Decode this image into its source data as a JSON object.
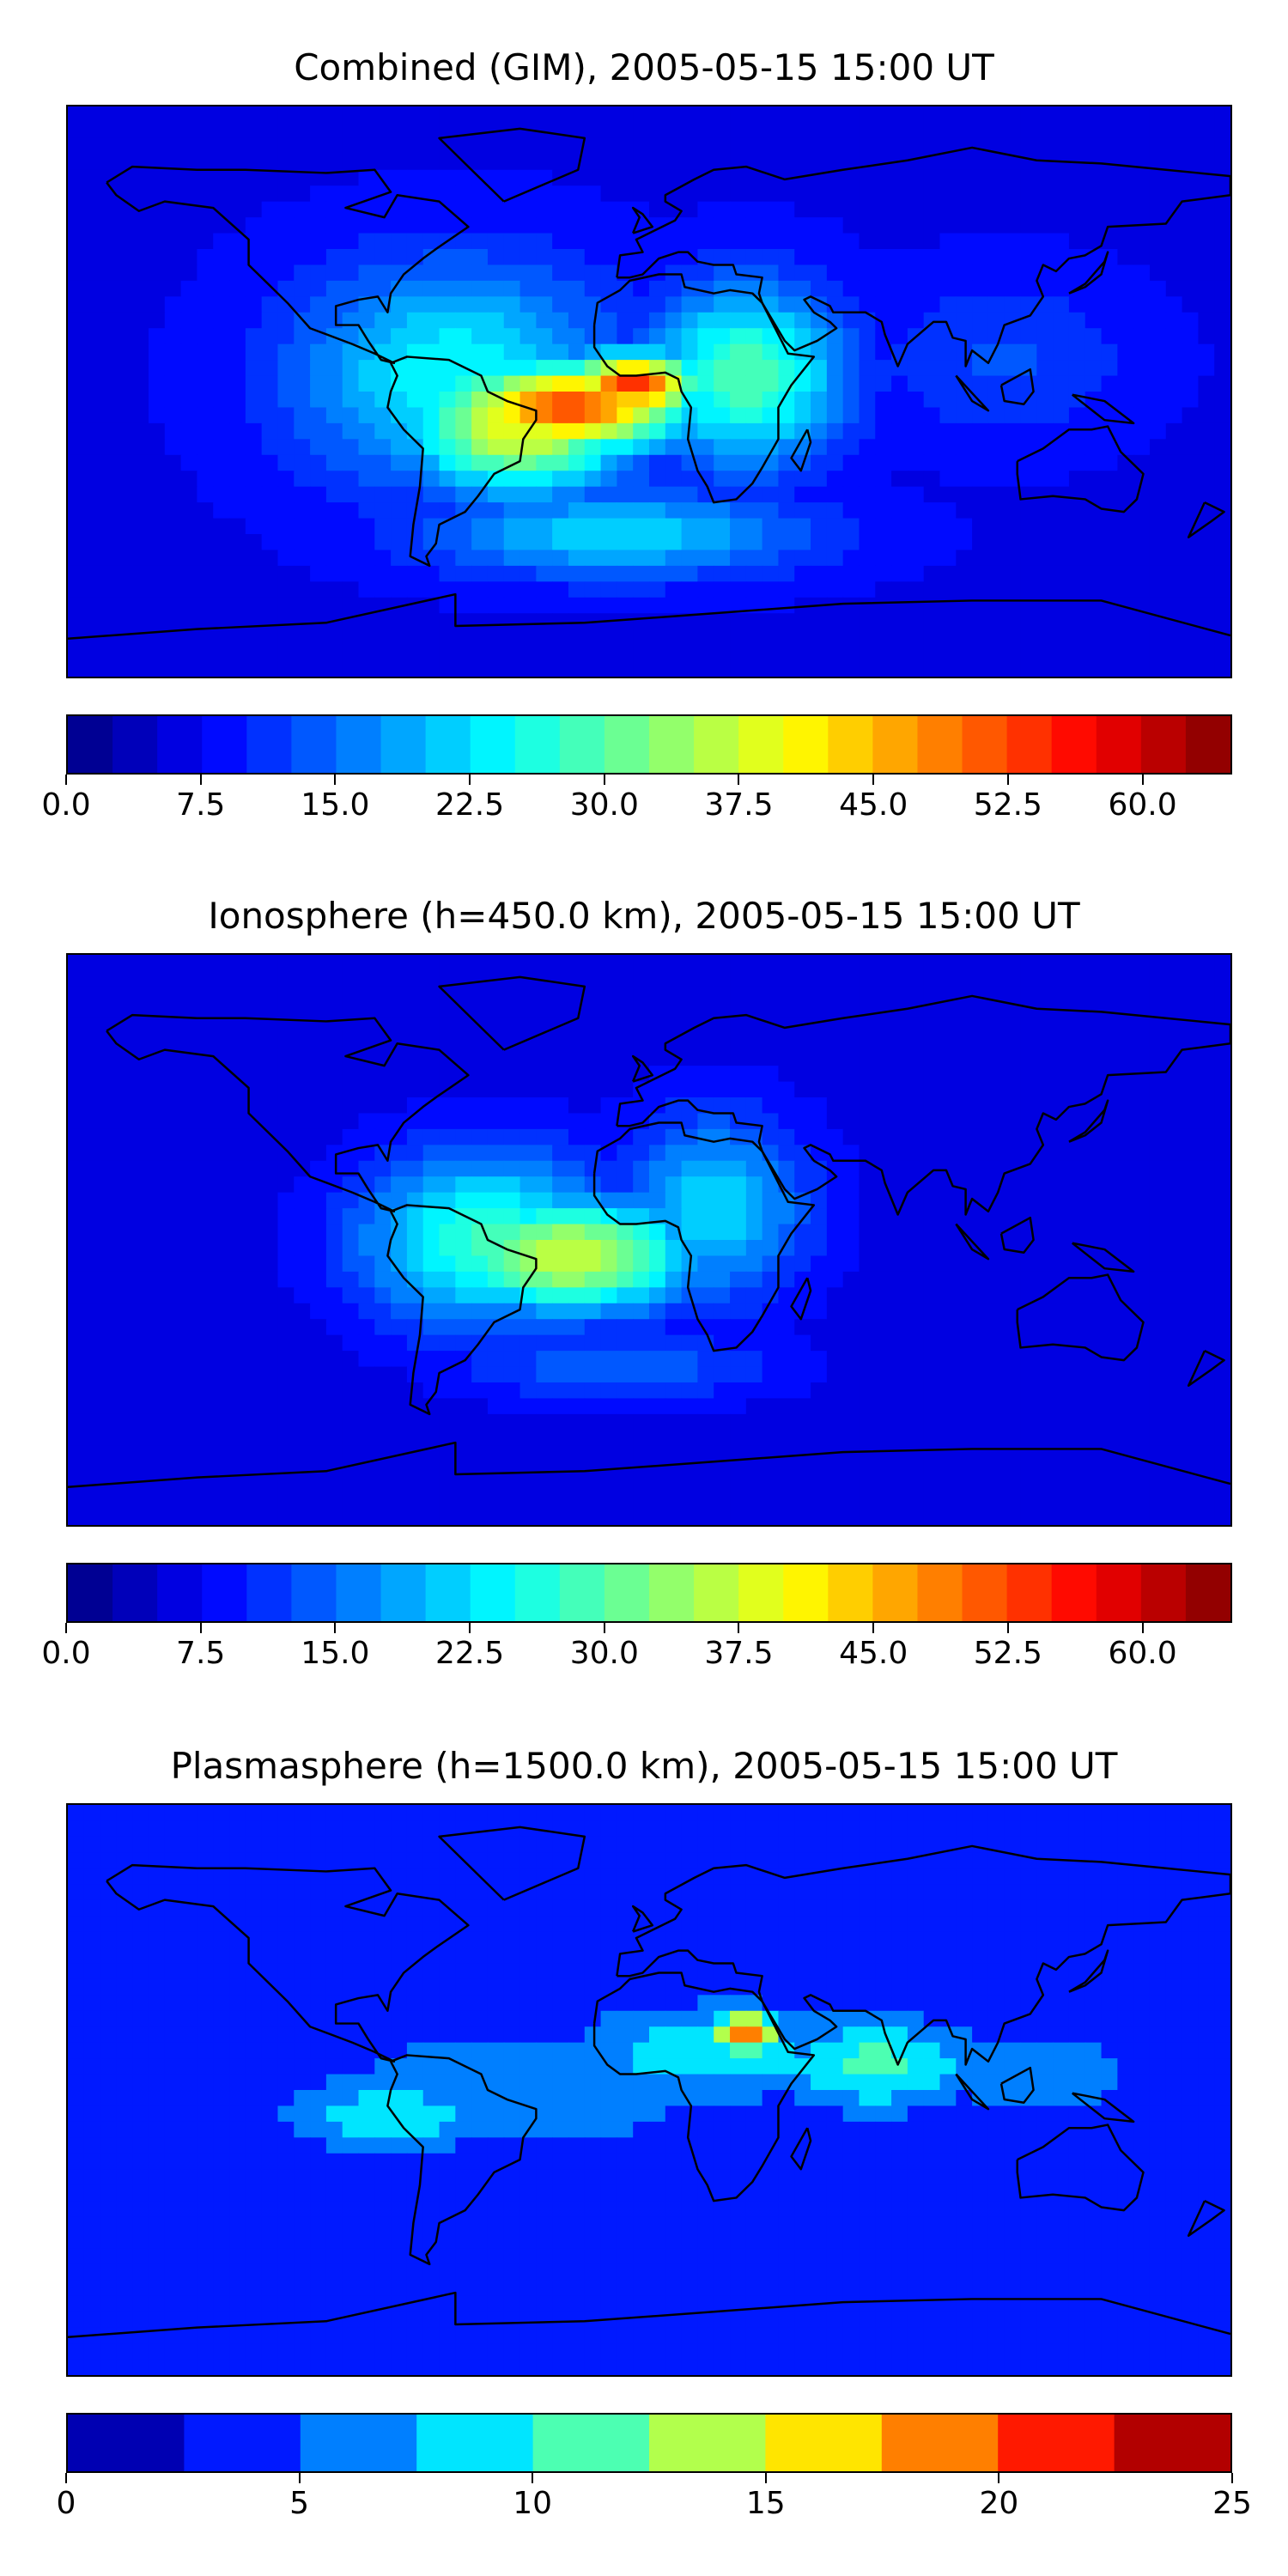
{
  "chart_data": [
    {
      "type": "heatmap",
      "title": "Combined (GIM), 2005-05-15 15:00 UT",
      "xlabel": "",
      "ylabel": "",
      "colorbar": {
        "levels": [
          0.0,
          2.5,
          5.0,
          7.5,
          10.0,
          12.5,
          15.0,
          17.5,
          20.0,
          22.5,
          25.0,
          27.5,
          30.0,
          32.5,
          35.0,
          37.5,
          40.0,
          42.5,
          45.0,
          47.5,
          50.0,
          52.5,
          55.0,
          57.5,
          60.0,
          62.5,
          65.0
        ],
        "ticks": [
          "0.0",
          "7.5",
          "15.0",
          "22.5",
          "30.0",
          "37.5",
          "45.0",
          "52.5",
          "60.0"
        ],
        "tick_values": [
          0.0,
          7.5,
          15.0,
          22.5,
          30.0,
          37.5,
          45.0,
          52.5,
          60.0
        ],
        "range": [
          0.0,
          65.0
        ]
      },
      "features": {
        "background_value": 7,
        "blobs": [
          {
            "lon": -25,
            "lat": -5,
            "value": 52,
            "spread_lon": 35,
            "spread_lat": 14
          },
          {
            "lon": -5,
            "lat": 2,
            "value": 54,
            "spread_lon": 20,
            "spread_lat": 10
          },
          {
            "lon": -40,
            "lat": -10,
            "value": 40,
            "spread_lon": 35,
            "spread_lat": 22
          },
          {
            "lon": -60,
            "lat": 5,
            "value": 25,
            "spread_lon": 50,
            "spread_lat": 35
          },
          {
            "lon": 30,
            "lat": 5,
            "value": 30,
            "spread_lon": 30,
            "spread_lat": 28
          },
          {
            "lon": -10,
            "lat": -45,
            "value": 22,
            "spread_lon": 60,
            "spread_lat": 14
          },
          {
            "lon": 110,
            "lat": 10,
            "value": 13,
            "spread_lon": 40,
            "spread_lat": 25
          }
        ]
      }
    },
    {
      "type": "heatmap",
      "title": "Ionosphere  (h=450.0 km), 2005-05-15 15:00 UT",
      "xlabel": "",
      "ylabel": "",
      "colorbar": {
        "levels": [
          0.0,
          2.5,
          5.0,
          7.5,
          10.0,
          12.5,
          15.0,
          17.5,
          20.0,
          22.5,
          25.0,
          27.5,
          30.0,
          32.5,
          35.0,
          37.5,
          40.0,
          42.5,
          45.0,
          47.5,
          50.0,
          52.5,
          55.0,
          57.5,
          60.0,
          62.5,
          65.0
        ],
        "ticks": [
          "0.0",
          "7.5",
          "15.0",
          "22.5",
          "30.0",
          "37.5",
          "45.0",
          "52.5",
          "60.0"
        ],
        "tick_values": [
          0.0,
          7.5,
          15.0,
          22.5,
          30.0,
          37.5,
          45.0,
          52.5,
          60.0
        ],
        "range": [
          0.0,
          65.0
        ]
      },
      "features": {
        "background_value": 6,
        "blobs": [
          {
            "lon": -25,
            "lat": -5,
            "value": 38,
            "spread_lon": 40,
            "spread_lat": 18
          },
          {
            "lon": -50,
            "lat": 0,
            "value": 28,
            "spread_lon": 40,
            "spread_lat": 28
          },
          {
            "lon": 20,
            "lat": 10,
            "value": 22,
            "spread_lon": 30,
            "spread_lat": 30
          },
          {
            "lon": -10,
            "lat": -40,
            "value": 15,
            "spread_lon": 50,
            "spread_lat": 12
          }
        ]
      }
    },
    {
      "type": "heatmap",
      "title": "Plasmasphere (h=1500.0 km), 2005-05-15 15:00 UT",
      "xlabel": "",
      "ylabel": "",
      "colorbar": {
        "levels": [
          0,
          2.5,
          5,
          7.5,
          10,
          12.5,
          15,
          17.5,
          20,
          22.5,
          25
        ],
        "ticks": [
          "0",
          "5",
          "10",
          "15",
          "20",
          "25"
        ],
        "tick_values": [
          0,
          5,
          10,
          15,
          20,
          25
        ],
        "range": [
          0,
          25
        ]
      },
      "features": {
        "background_value": 3,
        "blobs": [
          {
            "lon": 30,
            "lat": 18,
            "value": 21,
            "spread_lon": 10,
            "spread_lat": 7
          },
          {
            "lon": 20,
            "lat": 12,
            "value": 10,
            "spread_lon": 40,
            "spread_lat": 14
          },
          {
            "lon": 70,
            "lat": 8,
            "value": 11,
            "spread_lon": 30,
            "spread_lat": 14
          },
          {
            "lon": 120,
            "lat": 5,
            "value": 7,
            "spread_lon": 30,
            "spread_lat": 14
          },
          {
            "lon": -80,
            "lat": -8,
            "value": 9.5,
            "spread_lon": 30,
            "spread_lat": 12
          },
          {
            "lon": -40,
            "lat": 0,
            "value": 7,
            "spread_lon": 60,
            "spread_lat": 20
          }
        ]
      }
    }
  ],
  "colors": {
    "jet_stops": [
      "#00007f",
      "#0000ff",
      "#007fff",
      "#00ffff",
      "#7fff7f",
      "#ffff00",
      "#ff7f00",
      "#ff0000",
      "#7f0000"
    ],
    "coastline": "#000000"
  }
}
